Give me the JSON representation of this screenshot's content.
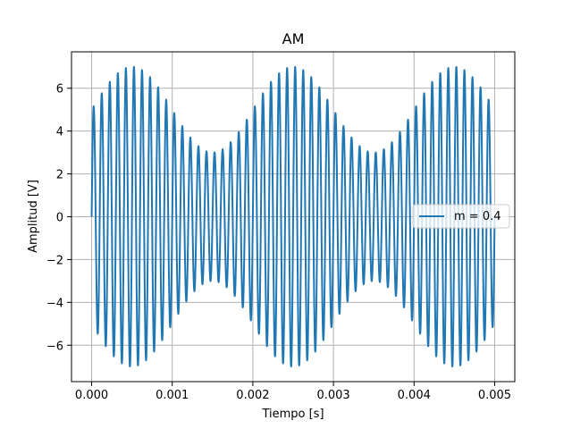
{
  "chart_data": {
    "type": "line",
    "title": "AM",
    "xlabel": "Tiempo [s]",
    "ylabel": "Amplitud [V]",
    "xlim": [
      -0.00025,
      0.00525
    ],
    "ylim": [
      -7.7,
      7.7
    ],
    "xticks": [
      0.0,
      0.001,
      0.002,
      0.003,
      0.004,
      0.005
    ],
    "xtick_labels": [
      "0.000",
      "0.001",
      "0.002",
      "0.003",
      "0.004",
      "0.005"
    ],
    "yticks": [
      -6,
      -4,
      -2,
      0,
      2,
      4,
      6
    ],
    "ytick_labels": [
      "−6",
      "−4",
      "−2",
      "0",
      "2",
      "4",
      "6"
    ],
    "grid": true,
    "legend_position": "center-right",
    "color": "#1f77b4",
    "series": [
      {
        "name": "m = 0.4",
        "signal": {
          "carrier_amplitude": 5,
          "modulation_index": 0.4,
          "carrier_frequency_hz": 10000,
          "message_frequency_hz": 500,
          "t_start": 0.0,
          "t_end": 0.005
        }
      }
    ]
  }
}
